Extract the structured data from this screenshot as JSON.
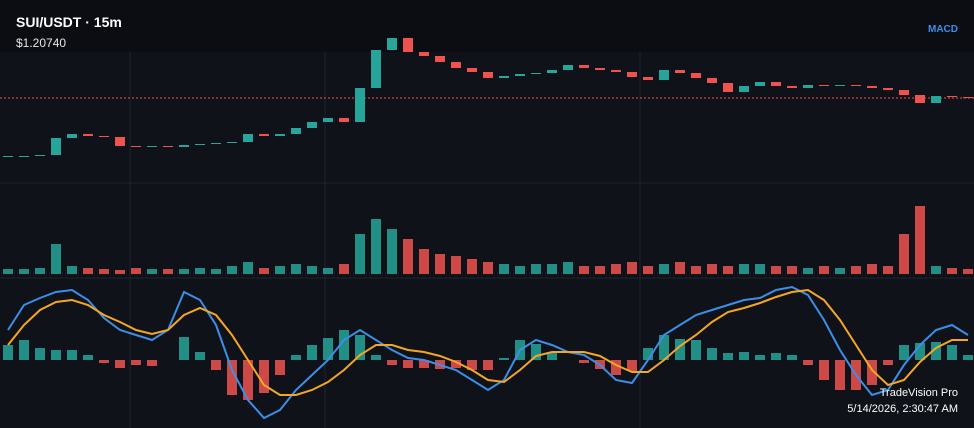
{
  "chart_data": [
    {
      "type": "candlestick",
      "title": "SUI/USDT · 15m",
      "price": {
        "value": 1.2074,
        "label": "$1.20740"
      },
      "ylim": [
        1.1054,
        1.3054
      ],
      "up_color": "#26a69a",
      "down_color": "#ef5350",
      "values": [
        1.1494,
        1.1494,
        1.1504,
        1.1674,
        1.1714,
        1.1694,
        1.1684,
        1.1594,
        1.1584,
        1.1594,
        1.1584,
        1.1604,
        1.1614,
        1.1624,
        1.1634,
        1.1714,
        1.1694,
        1.1714,
        1.1774,
        1.1834,
        1.1874,
        1.1834,
        1.2174,
        1.2554,
        1.2674,
        1.2534,
        1.2494,
        1.2434,
        1.2374,
        1.2334,
        1.2274,
        1.2294,
        1.2314,
        1.2324,
        1.2354,
        1.2404,
        1.2374,
        1.2354,
        1.2334,
        1.2284,
        1.2254,
        1.2354,
        1.2324,
        1.2274,
        1.2224,
        1.2134,
        1.2194,
        1.2234,
        1.2194,
        1.2174,
        1.2204,
        1.2194,
        1.2204,
        1.2194,
        1.2174,
        1.2154,
        1.2104,
        1.2024,
        1.2094,
        1.2084,
        1.2074
      ]
    },
    {
      "type": "bar",
      "ylim": [
        0,
        70
      ],
      "values": [
        5,
        5,
        6,
        30,
        8,
        6,
        5,
        4,
        6,
        5,
        5,
        5,
        6,
        5,
        8,
        12,
        6,
        8,
        10,
        8,
        6,
        10,
        40,
        55,
        45,
        35,
        25,
        20,
        18,
        15,
        12,
        10,
        8,
        10,
        10,
        12,
        8,
        8,
        10,
        12,
        8,
        10,
        12,
        8,
        10,
        8,
        10,
        10,
        8,
        8,
        6,
        8,
        6,
        8,
        10,
        8,
        40,
        68,
        8,
        6,
        5
      ]
    },
    {
      "type": "line",
      "title": "MACD",
      "ylim": [
        -68,
        80
      ],
      "series": [
        {
          "color": "#3b8fe8",
          "values": [
            30,
            55,
            62,
            68,
            70,
            60,
            42,
            30,
            25,
            20,
            30,
            68,
            60,
            35,
            -10,
            -40,
            -58,
            -50,
            -30,
            -15,
            0,
            20,
            30,
            20,
            10,
            2,
            0,
            -5,
            -10,
            -20,
            -30,
            -20,
            10,
            20,
            15,
            8,
            5,
            -5,
            -20,
            -23,
            0,
            25,
            35,
            45,
            50,
            55,
            60,
            62,
            70,
            73,
            65,
            40,
            10,
            -15,
            -35,
            -30,
            -5,
            15,
            30,
            35,
            25
          ]
        },
        {
          "color": "#f5a623",
          "values": [
            15,
            35,
            50,
            58,
            60,
            55,
            45,
            38,
            30,
            26,
            30,
            45,
            52,
            45,
            25,
            0,
            -25,
            -35,
            -35,
            -30,
            -22,
            -10,
            5,
            15,
            15,
            10,
            8,
            4,
            -2,
            -10,
            -20,
            -22,
            -10,
            4,
            8,
            8,
            8,
            4,
            -5,
            -12,
            -12,
            0,
            14,
            25,
            38,
            48,
            52,
            57,
            63,
            68,
            70,
            60,
            40,
            15,
            -10,
            -25,
            -20,
            -2,
            12,
            20,
            20
          ]
        }
      ],
      "histogram": [
        15,
        20,
        12,
        10,
        10,
        5,
        -3,
        -8,
        -5,
        -6,
        0,
        23,
        8,
        -10,
        -35,
        -40,
        -33,
        -15,
        5,
        15,
        22,
        30,
        25,
        5,
        -5,
        -8,
        -8,
        -9,
        -8,
        -10,
        -10,
        2,
        20,
        16,
        7,
        0,
        -3,
        -9,
        -15,
        -11,
        12,
        25,
        21,
        20,
        12,
        7,
        8,
        5,
        7,
        5,
        -5,
        -20,
        -30,
        -30,
        -25,
        -5,
        15,
        17,
        18,
        15,
        5
      ]
    }
  ],
  "footer": {
    "brand": "TradeVision Pro",
    "timestamp": "5/14/2026, 2:30:47 AM"
  }
}
